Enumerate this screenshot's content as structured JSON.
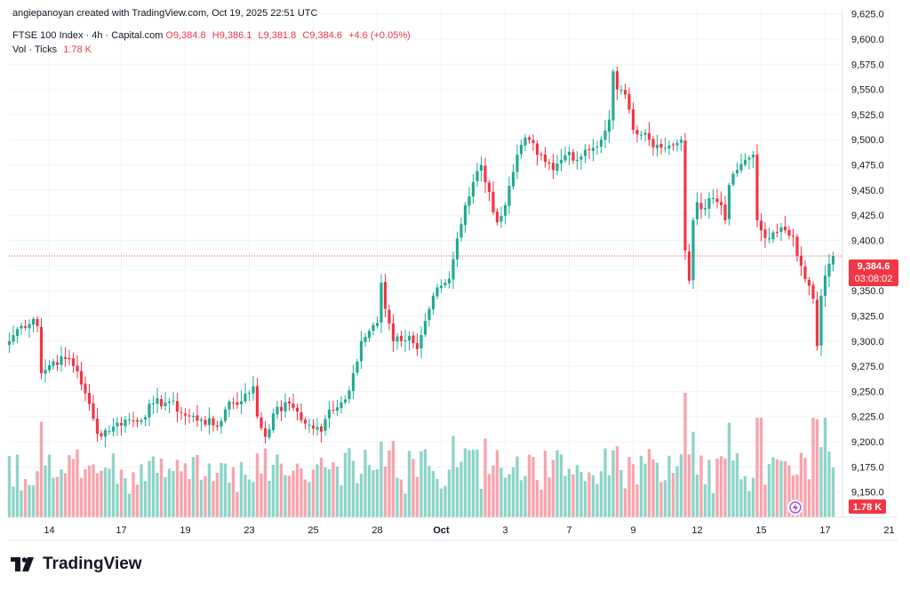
{
  "attribution": "angiepanoyan created with TradingView.com, Oct 19, 2025 22:51 UTC",
  "legend": {
    "symbol": "FTSE 100 Index · 4h · Capital.com",
    "o_label": "O",
    "o_value": "9,384.8",
    "h_label": "H",
    "h_value": "9,386.1",
    "l_label": "L",
    "l_value": "9,381.8",
    "c_label": "C",
    "c_value": "9,384.6",
    "change": "+4.6 (+0.05%)",
    "vol_label": "Vol · Ticks",
    "vol_value": "1.78 K"
  },
  "badges": {
    "price": "9,384.6",
    "countdown": "03:08:02",
    "volume": "1.78 K"
  },
  "brand": "TradingView",
  "colors": {
    "up": "#22ab94",
    "down": "#f23645",
    "vol_up": "#8fd4c8",
    "vol_down": "#f5a6ae",
    "grid": "#f0f3fa",
    "text": "#131722"
  },
  "chart_data": {
    "type": "candlestick",
    "title": "FTSE 100 Index · 4h · Capital.com",
    "ylim": [
      9125,
      9630
    ],
    "y_ticks": [
      "9,150.0",
      "9,175.0",
      "9,200.0",
      "9,225.0",
      "9,250.0",
      "9,275.0",
      "9,300.0",
      "9,325.0",
      "9,350.0",
      "9,375.0",
      "9,400.0",
      "9,425.0",
      "9,450.0",
      "9,475.0",
      "9,500.0",
      "9,525.0",
      "9,550.0",
      "9,575.0",
      "9,600.0",
      "9,625.0"
    ],
    "x_ticks": [
      {
        "label": "14",
        "index": 10
      },
      {
        "label": "17",
        "index": 28
      },
      {
        "label": "19",
        "index": 44
      },
      {
        "label": "23",
        "index": 60
      },
      {
        "label": "25",
        "index": 76
      },
      {
        "label": "28",
        "index": 92
      },
      {
        "label": "Oct",
        "index": 108
      },
      {
        "label": "3",
        "index": 124
      },
      {
        "label": "7",
        "index": 140
      },
      {
        "label": "9",
        "index": 156
      },
      {
        "label": "12",
        "index": 172
      },
      {
        "label": "15",
        "index": 188
      },
      {
        "label": "17",
        "index": 204
      },
      {
        "label": "21",
        "index": 220
      }
    ],
    "last_price": 9384.6,
    "close_anchors": [
      [
        0,
        9300
      ],
      [
        2,
        9312
      ],
      [
        6,
        9322
      ],
      [
        7,
        9315
      ],
      [
        8,
        9268
      ],
      [
        11,
        9280
      ],
      [
        15,
        9282
      ],
      [
        17,
        9270
      ],
      [
        19,
        9248
      ],
      [
        22,
        9208
      ],
      [
        26,
        9215
      ],
      [
        29,
        9222
      ],
      [
        32,
        9220
      ],
      [
        36,
        9238
      ],
      [
        40,
        9240
      ],
      [
        44,
        9226
      ],
      [
        48,
        9222
      ],
      [
        52,
        9215
      ],
      [
        55,
        9240
      ],
      [
        58,
        9240
      ],
      [
        61,
        9255
      ],
      [
        62,
        9225
      ],
      [
        64,
        9205
      ],
      [
        66,
        9228
      ],
      [
        70,
        9238
      ],
      [
        72,
        9230
      ],
      [
        74,
        9218
      ],
      [
        78,
        9210
      ],
      [
        80,
        9232
      ],
      [
        84,
        9242
      ],
      [
        86,
        9268
      ],
      [
        88,
        9300
      ],
      [
        90,
        9310
      ],
      [
        92,
        9318
      ],
      [
        93,
        9358
      ],
      [
        94,
        9332
      ],
      [
        96,
        9300
      ],
      [
        98,
        9300
      ],
      [
        100,
        9305
      ],
      [
        102,
        9292
      ],
      [
        104,
        9320
      ],
      [
        106,
        9345
      ],
      [
        108,
        9355
      ],
      [
        110,
        9362
      ],
      [
        112,
        9402
      ],
      [
        114,
        9435
      ],
      [
        116,
        9458
      ],
      [
        118,
        9475
      ],
      [
        120,
        9448
      ],
      [
        121,
        9428
      ],
      [
        122,
        9418
      ],
      [
        124,
        9435
      ],
      [
        126,
        9468
      ],
      [
        128,
        9495
      ],
      [
        130,
        9500
      ],
      [
        132,
        9485
      ],
      [
        134,
        9478
      ],
      [
        136,
        9470
      ],
      [
        138,
        9480
      ],
      [
        140,
        9488
      ],
      [
        142,
        9480
      ],
      [
        144,
        9490
      ],
      [
        146,
        9492
      ],
      [
        148,
        9500
      ],
      [
        150,
        9520
      ],
      [
        151,
        9568
      ],
      [
        152,
        9550
      ],
      [
        154,
        9545
      ],
      [
        156,
        9510
      ],
      [
        158,
        9505
      ],
      [
        160,
        9500
      ],
      [
        162,
        9495
      ],
      [
        164,
        9492
      ],
      [
        166,
        9495
      ],
      [
        168,
        9500
      ],
      [
        169,
        9390
      ],
      [
        170,
        9360
      ],
      [
        171,
        9420
      ],
      [
        172,
        9438
      ],
      [
        174,
        9432
      ],
      [
        176,
        9442
      ],
      [
        178,
        9435
      ],
      [
        179,
        9420
      ],
      [
        180,
        9455
      ],
      [
        182,
        9470
      ],
      [
        184,
        9480
      ],
      [
        186,
        9485
      ],
      [
        187,
        9420
      ],
      [
        188,
        9410
      ],
      [
        190,
        9402
      ],
      [
        192,
        9408
      ],
      [
        194,
        9410
      ],
      [
        196,
        9404
      ],
      [
        198,
        9375
      ],
      [
        200,
        9355
      ],
      [
        201,
        9342
      ],
      [
        202,
        9295
      ],
      [
        203,
        9345
      ],
      [
        204,
        9365
      ],
      [
        206,
        9384.6
      ]
    ],
    "volume_range": [
      0,
      1.0
    ],
    "volume_label": "1.78 K"
  }
}
